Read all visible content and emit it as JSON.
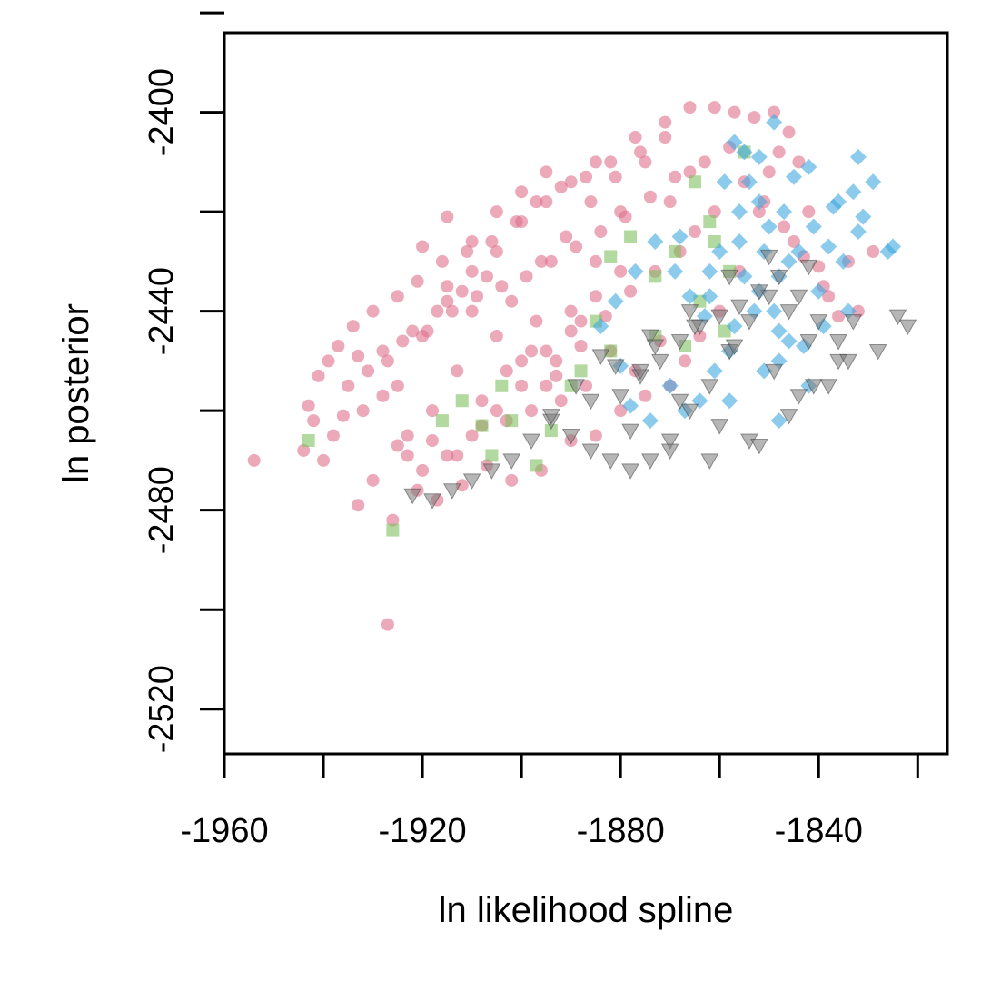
{
  "chart_data": {
    "type": "scatter",
    "title": "",
    "xlabel": "ln likelihood spline",
    "ylabel": "ln posterior",
    "xlim": [
      -1960,
      -1814
    ],
    "ylim": [
      -2529,
      -2384
    ],
    "x_ticks": [
      -1960,
      -1940,
      -1920,
      -1900,
      -1880,
      -1860,
      -1840,
      -1820
    ],
    "x_tick_labels": [
      "-1960",
      "-1920",
      "-1880",
      "-1840"
    ],
    "x_tick_label_values": [
      -1960,
      -1920,
      -1880,
      -1840
    ],
    "y_ticks": [
      -2520,
      -2500,
      -2480,
      -2460,
      -2440,
      -2420,
      -2400,
      -2380
    ],
    "y_tick_labels": [
      "-2400",
      "-2440",
      "-2480",
      "-2520"
    ],
    "y_tick_label_values": [
      -2400,
      -2440,
      -2480,
      -2520
    ],
    "grid": false,
    "legend": "none",
    "series": [
      {
        "marker": "circle",
        "color": "#e06f8b",
        "x": [
          -1954,
          -1927,
          -1944,
          -1940,
          -1933,
          -1930,
          -1926,
          -1921,
          -1917,
          -1912,
          -1907,
          -1902,
          -1896,
          -1890,
          -1885,
          -1880,
          -1875,
          -1870,
          -1867,
          -1864,
          -1860,
          -1856,
          -1852,
          -1850,
          -1848,
          -1845,
          -1829,
          -1832,
          -1836,
          -1838,
          -1840,
          -1842,
          -1844,
          -1846,
          -1849,
          -1853,
          -1857,
          -1861,
          -1866,
          -1871,
          -1877,
          -1882,
          -1887,
          -1892,
          -1897,
          -1901,
          -1906,
          -1911,
          -1916,
          -1921,
          -1925,
          -1930,
          -1934,
          -1937,
          -1939,
          -1941,
          -1943,
          -1942,
          -1938,
          -1936,
          -1935,
          -1931,
          -1928,
          -1924,
          -1919,
          -1914,
          -1909,
          -1904,
          -1899,
          -1894,
          -1889,
          -1884,
          -1879,
          -1874,
          -1869,
          -1863,
          -1858,
          -1855,
          -1851,
          -1847,
          -1843,
          -1839,
          -1834,
          -1910,
          -1905,
          -1900,
          -1895,
          -1915,
          -1920,
          -1925,
          -1890,
          -1885,
          -1880,
          -1875,
          -1870,
          -1865,
          -1898,
          -1893,
          -1888,
          -1908,
          -1903,
          -1913,
          -1918,
          -1923,
          -1928,
          -1933,
          -1896,
          -1891,
          -1886,
          -1881,
          -1876,
          -1871,
          -1866,
          -1861,
          -1872,
          -1877,
          -1882,
          -1887,
          -1892,
          -1897,
          -1902,
          -1907,
          -1912,
          -1917,
          -1922,
          -1927,
          -1932,
          -1868,
          -1873,
          -1878,
          -1883,
          -1888,
          -1893,
          -1898,
          -1903,
          -1908,
          -1913,
          -1918,
          -1923,
          -1895,
          -1900,
          -1905,
          -1910,
          -1915,
          -1920,
          -1885,
          -1890,
          -1895,
          -1900,
          -1905,
          -1910,
          -1915,
          -1880,
          -1885,
          -1890,
          -1895,
          -1900,
          -1905,
          -1910,
          -1915,
          -1920,
          -1925
        ],
        "y": [
          -2470,
          -2503,
          -2468,
          -2470,
          -2479,
          -2474,
          -2482,
          -2476,
          -2478,
          -2475,
          -2471,
          -2474,
          -2472,
          -2466,
          -2465,
          -2460,
          -2457,
          -2455,
          -2450,
          -2445,
          -2440,
          -2432,
          -2420,
          -2412,
          -2408,
          -2426,
          -2428,
          -2440,
          -2441,
          -2437,
          -2431,
          -2420,
          -2410,
          -2404,
          -2400,
          -2401,
          -2400,
          -2399,
          -2399,
          -2402,
          -2405,
          -2410,
          -2413,
          -2415,
          -2418,
          -2422,
          -2426,
          -2428,
          -2430,
          -2434,
          -2437,
          -2440,
          -2443,
          -2447,
          -2450,
          -2453,
          -2459,
          -2462,
          -2465,
          -2461,
          -2455,
          -2452,
          -2448,
          -2446,
          -2444,
          -2440,
          -2437,
          -2435,
          -2433,
          -2430,
          -2427,
          -2424,
          -2421,
          -2417,
          -2413,
          -2410,
          -2407,
          -2414,
          -2418,
          -2423,
          -2429,
          -2435,
          -2430,
          -2440,
          -2445,
          -2450,
          -2455,
          -2435,
          -2445,
          -2455,
          -2440,
          -2430,
          -2420,
          -2410,
          -2418,
          -2424,
          -2460,
          -2450,
          -2442,
          -2458,
          -2462,
          -2452,
          -2460,
          -2465,
          -2457,
          -2449,
          -2430,
          -2425,
          -2418,
          -2413,
          -2408,
          -2405,
          -2412,
          -2420,
          -2446,
          -2452,
          -2448,
          -2455,
          -2458,
          -2442,
          -2438,
          -2433,
          -2436,
          -2440,
          -2444,
          -2450,
          -2460,
          -2428,
          -2432,
          -2436,
          -2441,
          -2447,
          -2453,
          -2448,
          -2452,
          -2463,
          -2469,
          -2466,
          -2469,
          -2412,
          -2416,
          -2420,
          -2426,
          -2421,
          -2427,
          -2410,
          -2414,
          -2418,
          -2422,
          -2428,
          -2432,
          -2438,
          -2432,
          -2437,
          -2444,
          -2448,
          -2455,
          -2460,
          -2465,
          -2469,
          -2472,
          -2467
        ]
      },
      {
        "marker": "square",
        "color": "#7fbf5f",
        "x": [
          -1926,
          -1943,
          -1916,
          -1912,
          -1906,
          -1904,
          -1897,
          -1894,
          -1890,
          -1885,
          -1882,
          -1878,
          -1873,
          -1869,
          -1865,
          -1862,
          -1858,
          -1855,
          -1882,
          -1888,
          -1902,
          -1908,
          -1873,
          -1867,
          -1859,
          -1861,
          -1864
        ],
        "y": [
          -2484,
          -2466,
          -2462,
          -2458,
          -2469,
          -2455,
          -2471,
          -2464,
          -2455,
          -2442,
          -2429,
          -2425,
          -2445,
          -2428,
          -2414,
          -2422,
          -2432,
          -2408,
          -2448,
          -2452,
          -2462,
          -2463,
          -2433,
          -2447,
          -2444,
          -2426,
          -2438
        ]
      },
      {
        "marker": "diamond",
        "color": "#3fa9e0",
        "x": [
          -1849,
          -1832,
          -1829,
          -1826,
          -1825,
          -1848,
          -1842,
          -1836,
          -1832,
          -1838,
          -1845,
          -1852,
          -1856,
          -1860,
          -1862,
          -1855,
          -1850,
          -1846,
          -1840,
          -1835,
          -1831,
          -1834,
          -1843,
          -1851,
          -1857,
          -1863,
          -1866,
          -1869,
          -1873,
          -1877,
          -1881,
          -1884,
          -1858,
          -1848,
          -1844,
          -1852,
          -1856,
          -1841,
          -1837,
          -1833,
          -1848,
          -1851,
          -1854,
          -1857,
          -1847,
          -1853,
          -1858,
          -1861,
          -1864,
          -1867,
          -1870,
          -1874,
          -1878,
          -1880,
          -1868,
          -1862,
          -1852,
          -1849,
          -1846,
          -1859,
          -1855,
          -1848,
          -1842,
          -1839
        ],
        "y": [
          -2402,
          -2409,
          -2414,
          -2428,
          -2427,
          -2462,
          -2411,
          -2418,
          -2424,
          -2427,
          -2413,
          -2409,
          -2420,
          -2428,
          -2437,
          -2433,
          -2423,
          -2430,
          -2436,
          -2430,
          -2421,
          -2440,
          -2447,
          -2452,
          -2443,
          -2441,
          -2437,
          -2432,
          -2426,
          -2432,
          -2438,
          -2443,
          -2458,
          -2444,
          -2428,
          -2418,
          -2426,
          -2423,
          -2419,
          -2416,
          -2433,
          -2428,
          -2414,
          -2406,
          -2420,
          -2440,
          -2448,
          -2452,
          -2458,
          -2460,
          -2455,
          -2462,
          -2459,
          -2451,
          -2425,
          -2432,
          -2436,
          -2440,
          -2446,
          -2414,
          -2408,
          -2450,
          -2455,
          -2443
        ]
      },
      {
        "marker": "triangle-down",
        "color": "#7a7a7a",
        "x": [
          -1822,
          -1824,
          -1828,
          -1836,
          -1842,
          -1846,
          -1850,
          -1854,
          -1858,
          -1862,
          -1866,
          -1870,
          -1874,
          -1878,
          -1882,
          -1886,
          -1890,
          -1894,
          -1898,
          -1902,
          -1906,
          -1910,
          -1914,
          -1918,
          -1922,
          -1880,
          -1876,
          -1872,
          -1868,
          -1864,
          -1860,
          -1856,
          -1852,
          -1848,
          -1844,
          -1840,
          -1836,
          -1834,
          -1838,
          -1846,
          -1854,
          -1862,
          -1870,
          -1878,
          -1886,
          -1894,
          -1874,
          -1866,
          -1858,
          -1850,
          -1842,
          -1884,
          -1876,
          -1868,
          -1860,
          -1852,
          -1844,
          -1889,
          -1881,
          -1873,
          -1865,
          -1857,
          -1849,
          -1841,
          -1833
        ],
        "y": [
          -2443,
          -2441,
          -2448,
          -2450,
          -2446,
          -2440,
          -2437,
          -2442,
          -2448,
          -2455,
          -2460,
          -2466,
          -2470,
          -2472,
          -2470,
          -2468,
          -2465,
          -2462,
          -2466,
          -2470,
          -2472,
          -2474,
          -2476,
          -2478,
          -2477,
          -2457,
          -2453,
          -2450,
          -2446,
          -2443,
          -2441,
          -2439,
          -2436,
          -2433,
          -2437,
          -2442,
          -2446,
          -2450,
          -2455,
          -2461,
          -2466,
          -2470,
          -2468,
          -2464,
          -2458,
          -2461,
          -2445,
          -2440,
          -2433,
          -2429,
          -2431,
          -2449,
          -2452,
          -2458,
          -2463,
          -2467,
          -2457,
          -2455,
          -2451,
          -2447,
          -2443,
          -2447,
          -2452,
          -2455,
          -2442
        ]
      }
    ]
  }
}
